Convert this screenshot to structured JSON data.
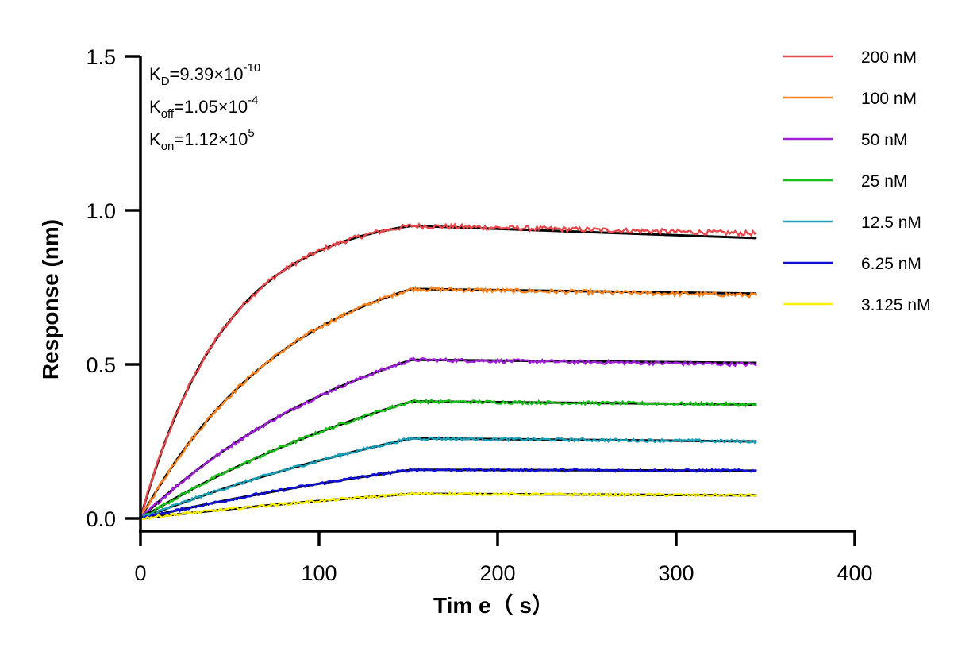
{
  "chart_data": {
    "type": "line",
    "title": "",
    "xlabel": "Tim e（ s）",
    "ylabel": "Response (nm)",
    "xlim": [
      0,
      400
    ],
    "ylim": [
      -0.05,
      1.5
    ],
    "xticks": [
      0,
      100,
      200,
      300,
      400
    ],
    "xtick_labels": [
      "0",
      "100",
      "200",
      "300",
      "400"
    ],
    "yticks": [
      0.0,
      0.5,
      1.0,
      1.5
    ],
    "ytick_labels": [
      "0.0",
      "0.5",
      "1.0",
      "1.5"
    ],
    "grid": false,
    "legend_position": "top-right",
    "annotations": [
      {
        "name": "KD",
        "base": "K",
        "sub": "D",
        "text": "=9.39×10",
        "sup": "-10"
      },
      {
        "name": "Koff",
        "base": "K",
        "sub": "off",
        "text": "=1.05×10",
        "sup": "-4"
      },
      {
        "name": "Kon",
        "base": "K",
        "sub": "on",
        "text": "=1.12×10",
        "sup": "5"
      }
    ],
    "association_end_time": 152,
    "end_time": 345,
    "fit_color": "#000000",
    "series": [
      {
        "name": "200 nM",
        "color": "#e8474c",
        "plateau": 0.95,
        "end": 0.925,
        "fit_end": 0.91
      },
      {
        "name": "100 nM",
        "color": "#f7821e",
        "plateau": 0.745,
        "end": 0.725,
        "fit_end": 0.73
      },
      {
        "name": "50 nM",
        "color": "#a020d8",
        "plateau": 0.515,
        "end": 0.5,
        "fit_end": 0.505
      },
      {
        "name": "25 nM",
        "color": "#18c018",
        "plateau": 0.38,
        "end": 0.37,
        "fit_end": 0.37
      },
      {
        "name": "12.5 nM",
        "color": "#18a0b8",
        "plateau": 0.26,
        "end": 0.25,
        "fit_end": 0.25
      },
      {
        "name": "6.25 nM",
        "color": "#1010d8",
        "plateau": 0.158,
        "end": 0.155,
        "fit_end": 0.155
      },
      {
        "name": "3.125 nM",
        "color": "#f8f000",
        "plateau": 0.08,
        "end": 0.075,
        "fit_end": 0.075
      }
    ]
  }
}
